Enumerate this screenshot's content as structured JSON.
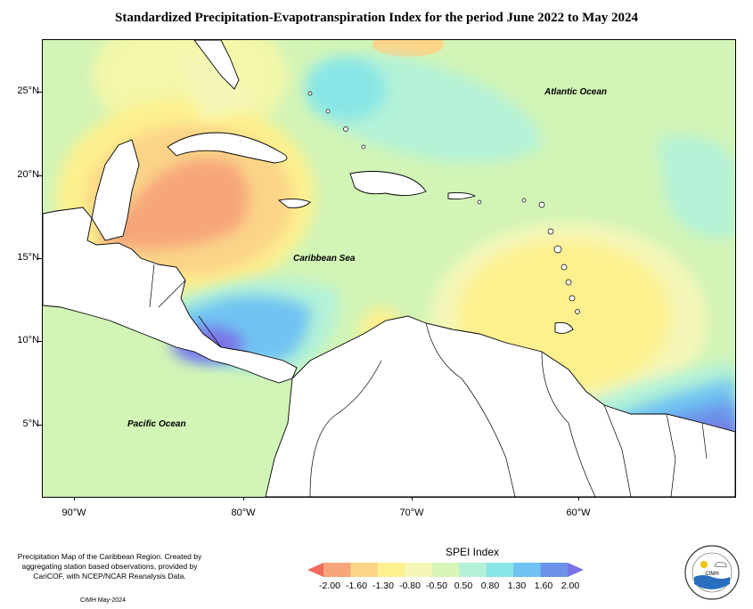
{
  "title": "Standardized Precipitation-Evapotranspiration Index for the period June 2022 to May 2024",
  "map": {
    "lat_ticks": [
      "25°N",
      "20°N",
      "15°N",
      "10°N",
      "5°N"
    ],
    "lon_ticks": [
      "90°W",
      "80°W",
      "70°W",
      "60°W"
    ],
    "labels": {
      "atlantic": "Atlantic Ocean",
      "caribbean": "Caribbean Sea",
      "pacific": "Pacific Ocean"
    }
  },
  "footer": {
    "note": "Precipitation Map of the Caribbean Region. Created by aggregating station based observations, provided by CariCOF, with NCEP/NCAR Reanalysis Data.",
    "credit": "CIMH May-2024"
  },
  "legend": {
    "title": "SPEI Index",
    "labels": [
      "-2.00",
      "-1.60",
      "-1.30",
      "-0.80",
      "-0.50",
      "0.50",
      "0.80",
      "1.30",
      "1.60",
      "2.00"
    ],
    "colors": [
      "#f26b5e",
      "#f7a57a",
      "#fbd488",
      "#fdf08e",
      "#f5f7b8",
      "#d7f5b8",
      "#b3f2d8",
      "#88e6e6",
      "#6fc3f3",
      "#6a93e8",
      "#7a72e6"
    ]
  },
  "logo": {
    "text": "CIMH"
  }
}
